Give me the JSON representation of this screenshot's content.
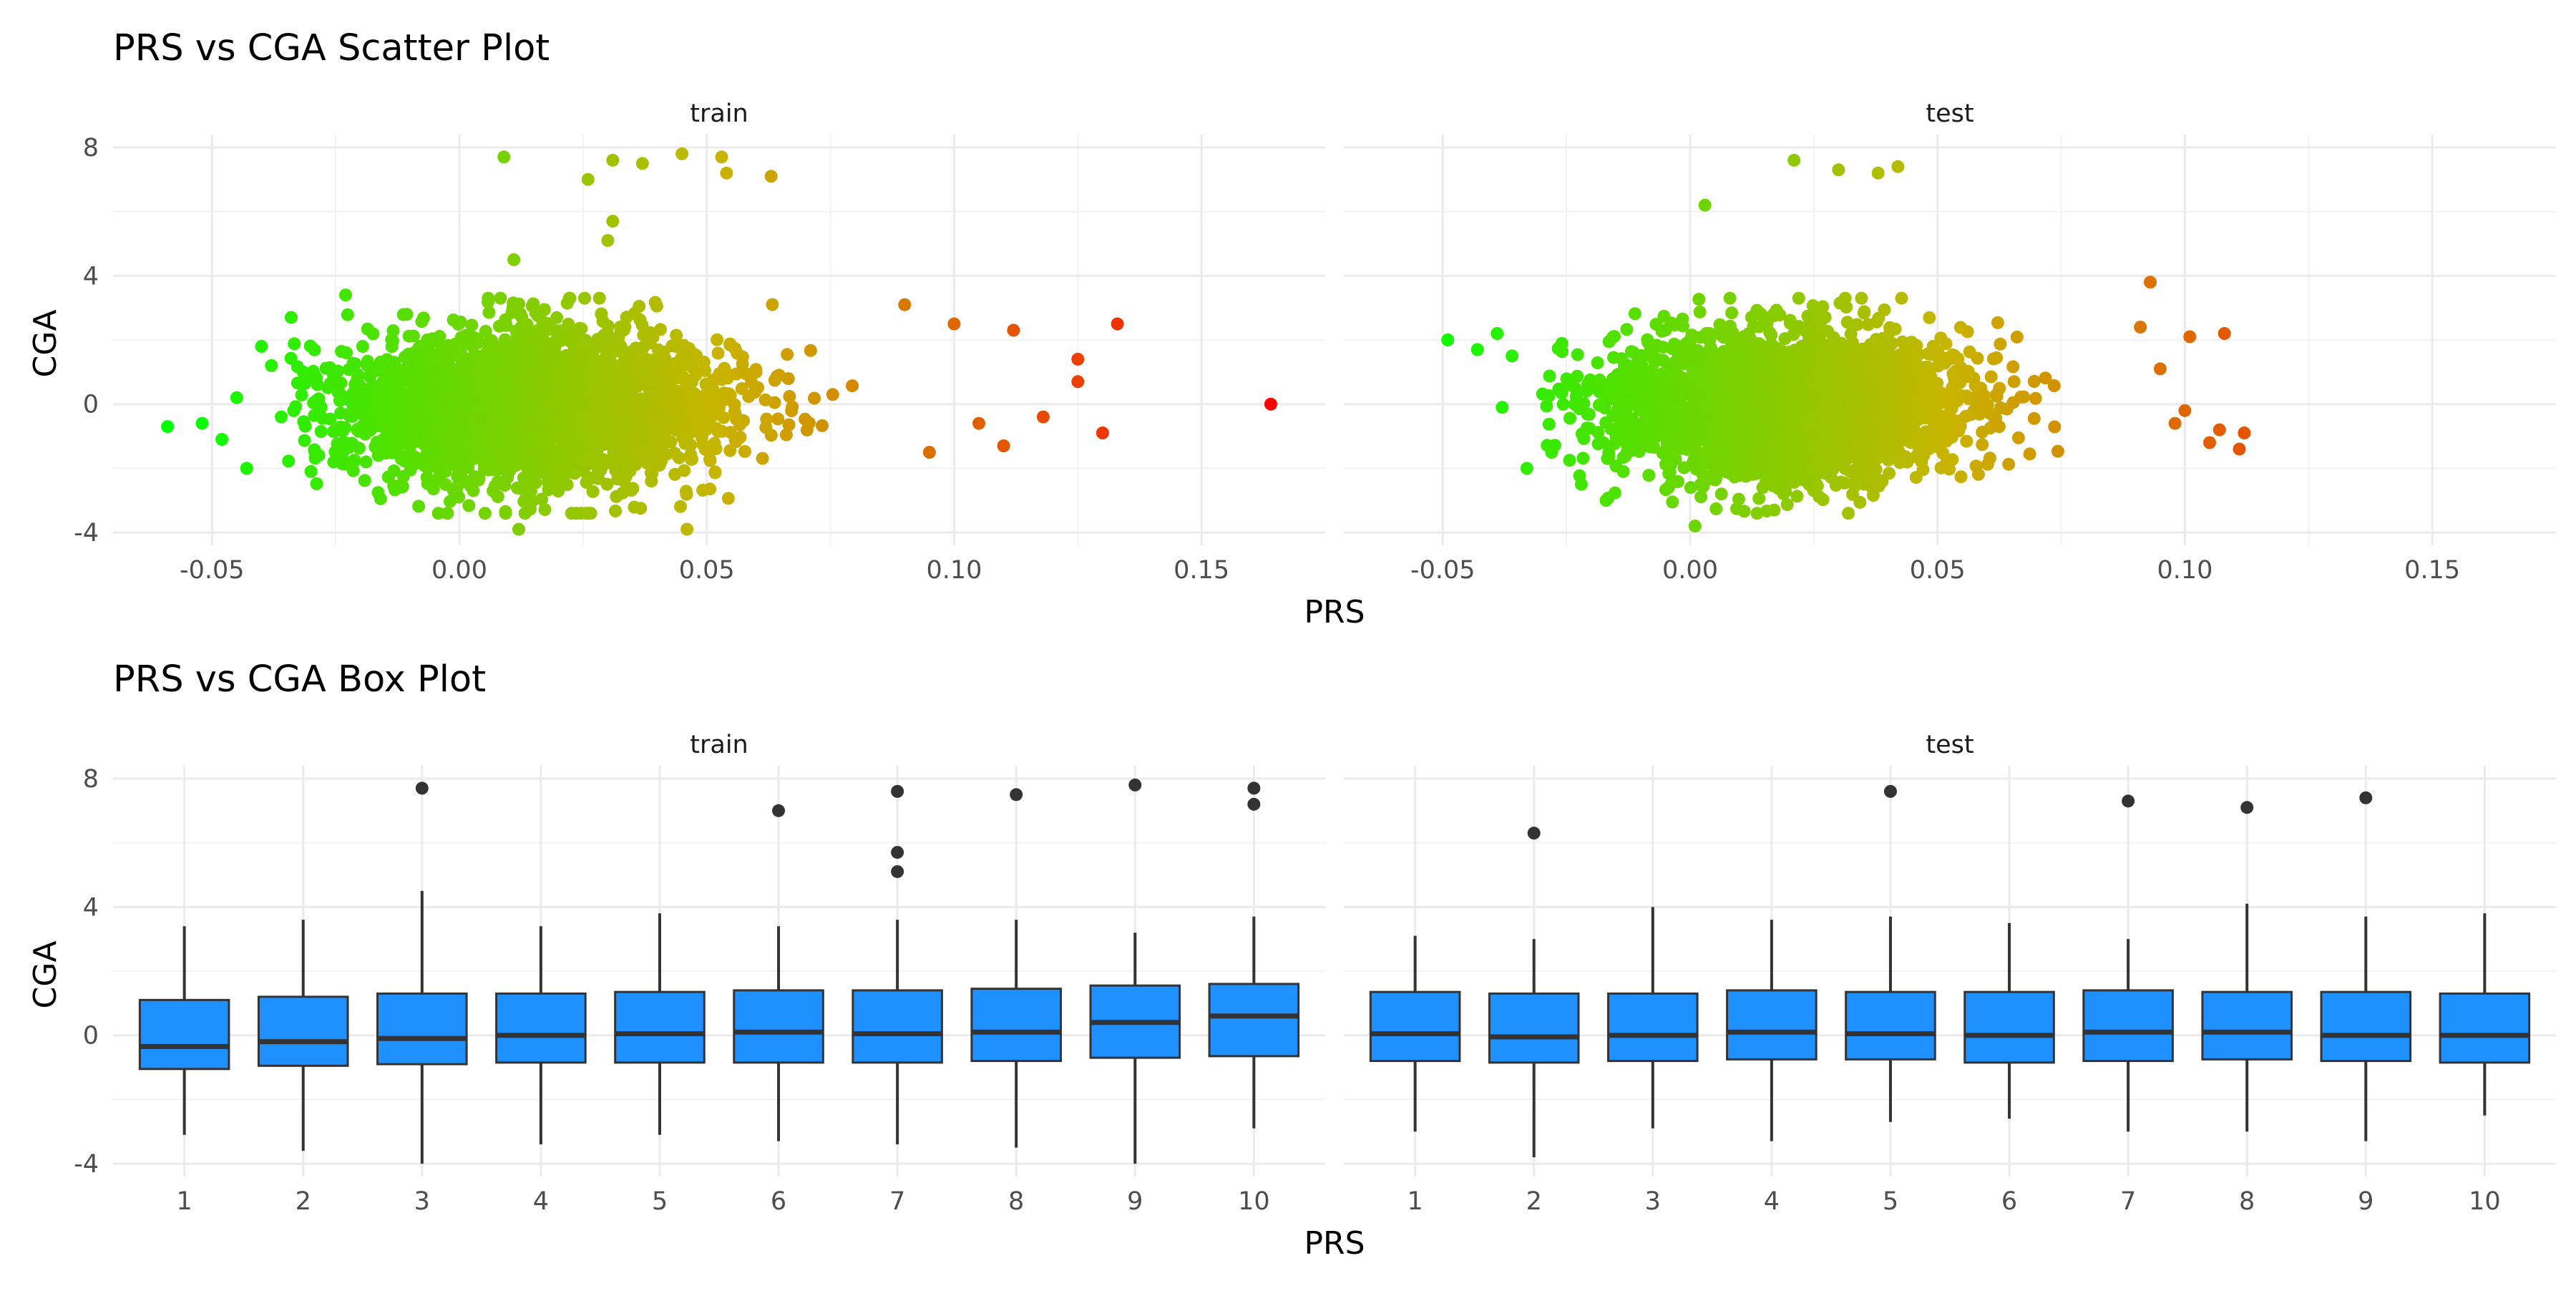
{
  "colors": {
    "gradient_low": "#00ff00",
    "gradient_mid": "#c8b400",
    "gradient_high": "#ff0000",
    "box_fill": "#1e90ff",
    "box_stroke": "#333333",
    "outlier": "#333333"
  },
  "chart_data": [
    {
      "type": "scatter",
      "title": "PRS vs CGA Scatter Plot",
      "xlabel": "PRS",
      "ylabel": "CGA",
      "facets": [
        "train",
        "test"
      ],
      "xlim": [
        -0.07,
        0.175
      ],
      "ylim": [
        -4.4,
        8.4
      ],
      "x_ticks": [
        -0.05,
        0.0,
        0.05,
        0.1,
        0.15
      ],
      "x_tick_labels": [
        "-0.05",
        "0.00",
        "0.05",
        "0.10",
        "0.15"
      ],
      "y_ticks": [
        -4,
        0,
        4,
        8
      ],
      "y_tick_labels": [
        "-4",
        "0",
        "4",
        "8"
      ],
      "color_by": "PRS",
      "grid": true,
      "series": [
        {
          "facet": "train",
          "bulk": {
            "x_range": [
              -0.035,
              0.08
            ],
            "center": [
              0.015,
              -0.1
            ],
            "sd": [
              0.02,
              1.25
            ]
          },
          "notable_points": [
            [
              -0.059,
              -0.7
            ],
            [
              -0.052,
              -0.6
            ],
            [
              -0.048,
              -1.1
            ],
            [
              -0.045,
              0.2
            ],
            [
              -0.043,
              -2.0
            ],
            [
              -0.04,
              1.8
            ],
            [
              -0.038,
              1.2
            ],
            [
              -0.036,
              -0.4
            ],
            [
              -0.034,
              2.7
            ],
            [
              -0.03,
              -2.1
            ],
            [
              -0.023,
              3.4
            ],
            [
              0.009,
              7.7
            ],
            [
              0.011,
              4.5
            ],
            [
              0.012,
              -3.9
            ],
            [
              0.026,
              7.0
            ],
            [
              0.03,
              5.1
            ],
            [
              0.031,
              7.6
            ],
            [
              0.031,
              5.7
            ],
            [
              0.037,
              7.5
            ],
            [
              0.045,
              7.8
            ],
            [
              0.046,
              -3.9
            ],
            [
              0.053,
              7.7
            ],
            [
              0.054,
              7.2
            ],
            [
              0.063,
              7.1
            ],
            [
              0.09,
              3.1
            ],
            [
              0.095,
              -1.5
            ],
            [
              0.1,
              2.5
            ],
            [
              0.105,
              -0.6
            ],
            [
              0.11,
              -1.3
            ],
            [
              0.112,
              2.3
            ],
            [
              0.118,
              -0.4
            ],
            [
              0.125,
              1.4
            ],
            [
              0.125,
              0.7
            ],
            [
              0.13,
              -0.9
            ],
            [
              0.133,
              2.5
            ],
            [
              0.164,
              0.0
            ]
          ]
        },
        {
          "facet": "test",
          "bulk": {
            "x_range": [
              -0.03,
              0.075
            ],
            "center": [
              0.02,
              0.0
            ],
            "sd": [
              0.018,
              1.2
            ]
          },
          "notable_points": [
            [
              -0.049,
              2.0
            ],
            [
              -0.043,
              1.7
            ],
            [
              -0.039,
              2.2
            ],
            [
              -0.038,
              -0.1
            ],
            [
              -0.036,
              1.5
            ],
            [
              -0.033,
              -2.0
            ],
            [
              -0.028,
              -1.5
            ],
            [
              -0.022,
              -2.5
            ],
            [
              -0.017,
              -3.0
            ],
            [
              0.001,
              -3.8
            ],
            [
              0.003,
              6.2
            ],
            [
              0.017,
              -3.3
            ],
            [
              0.021,
              7.6
            ],
            [
              0.03,
              7.3
            ],
            [
              0.038,
              7.2
            ],
            [
              0.042,
              7.4
            ],
            [
              0.093,
              3.8
            ],
            [
              0.091,
              2.4
            ],
            [
              0.095,
              1.1
            ],
            [
              0.098,
              -0.6
            ],
            [
              0.1,
              -0.2
            ],
            [
              0.101,
              2.1
            ],
            [
              0.105,
              -1.2
            ],
            [
              0.107,
              -0.8
            ],
            [
              0.108,
              2.2
            ],
            [
              0.111,
              -1.4
            ],
            [
              0.112,
              -0.9
            ]
          ]
        }
      ]
    },
    {
      "type": "box",
      "title": "PRS vs CGA Box Plot",
      "xlabel": "PRS",
      "ylabel": "CGA",
      "facets": [
        "train",
        "test"
      ],
      "categories": [
        "1",
        "2",
        "3",
        "4",
        "5",
        "6",
        "7",
        "8",
        "9",
        "10"
      ],
      "ylim": [
        -4.4,
        8.4
      ],
      "y_ticks": [
        -4,
        0,
        4,
        8
      ],
      "y_tick_labels": [
        "-4",
        "0",
        "4",
        "8"
      ],
      "grid": true,
      "series": [
        {
          "facet": "train",
          "boxes": [
            {
              "category": "1",
              "whisker_low": -3.1,
              "q1": -1.05,
              "median": -0.35,
              "q3": 1.1,
              "whisker_high": 3.4,
              "outliers": []
            },
            {
              "category": "2",
              "whisker_low": -3.6,
              "q1": -0.95,
              "median": -0.2,
              "q3": 1.2,
              "whisker_high": 3.6,
              "outliers": []
            },
            {
              "category": "3",
              "whisker_low": -4.0,
              "q1": -0.9,
              "median": -0.1,
              "q3": 1.3,
              "whisker_high": 4.5,
              "outliers": [
                7.7
              ]
            },
            {
              "category": "4",
              "whisker_low": -3.4,
              "q1": -0.85,
              "median": 0.0,
              "q3": 1.3,
              "whisker_high": 3.4,
              "outliers": []
            },
            {
              "category": "5",
              "whisker_low": -3.1,
              "q1": -0.85,
              "median": 0.05,
              "q3": 1.35,
              "whisker_high": 3.8,
              "outliers": []
            },
            {
              "category": "6",
              "whisker_low": -3.3,
              "q1": -0.85,
              "median": 0.1,
              "q3": 1.4,
              "whisker_high": 3.4,
              "outliers": [
                7.0
              ]
            },
            {
              "category": "7",
              "whisker_low": -3.4,
              "q1": -0.85,
              "median": 0.05,
              "q3": 1.4,
              "whisker_high": 3.6,
              "outliers": [
                5.1,
                5.7,
                7.6
              ]
            },
            {
              "category": "8",
              "whisker_low": -3.5,
              "q1": -0.8,
              "median": 0.1,
              "q3": 1.45,
              "whisker_high": 3.6,
              "outliers": [
                7.5
              ]
            },
            {
              "category": "9",
              "whisker_low": -4.0,
              "q1": -0.7,
              "median": 0.4,
              "q3": 1.55,
              "whisker_high": 3.2,
              "outliers": [
                7.8
              ]
            },
            {
              "category": "10",
              "whisker_low": -2.9,
              "q1": -0.65,
              "median": 0.6,
              "q3": 1.6,
              "whisker_high": 3.7,
              "outliers": [
                7.2,
                7.7
              ]
            }
          ]
        },
        {
          "facet": "test",
          "boxes": [
            {
              "category": "1",
              "whisker_low": -3.0,
              "q1": -0.8,
              "median": 0.05,
              "q3": 1.35,
              "whisker_high": 3.1,
              "outliers": []
            },
            {
              "category": "2",
              "whisker_low": -3.8,
              "q1": -0.85,
              "median": -0.05,
              "q3": 1.3,
              "whisker_high": 3.0,
              "outliers": [
                6.3
              ]
            },
            {
              "category": "3",
              "whisker_low": -2.9,
              "q1": -0.8,
              "median": 0.0,
              "q3": 1.3,
              "whisker_high": 4.0,
              "outliers": []
            },
            {
              "category": "4",
              "whisker_low": -3.3,
              "q1": -0.75,
              "median": 0.1,
              "q3": 1.4,
              "whisker_high": 3.6,
              "outliers": []
            },
            {
              "category": "5",
              "whisker_low": -2.7,
              "q1": -0.75,
              "median": 0.05,
              "q3": 1.35,
              "whisker_high": 3.7,
              "outliers": [
                7.6
              ]
            },
            {
              "category": "6",
              "whisker_low": -2.6,
              "q1": -0.85,
              "median": 0.0,
              "q3": 1.35,
              "whisker_high": 3.5,
              "outliers": []
            },
            {
              "category": "7",
              "whisker_low": -3.0,
              "q1": -0.8,
              "median": 0.1,
              "q3": 1.4,
              "whisker_high": 3.0,
              "outliers": [
                7.3
              ]
            },
            {
              "category": "8",
              "whisker_low": -3.0,
              "q1": -0.75,
              "median": 0.1,
              "q3": 1.35,
              "whisker_high": 4.1,
              "outliers": [
                7.1
              ]
            },
            {
              "category": "9",
              "whisker_low": -3.3,
              "q1": -0.8,
              "median": 0.0,
              "q3": 1.35,
              "whisker_high": 3.7,
              "outliers": [
                7.4
              ]
            },
            {
              "category": "10",
              "whisker_low": -2.5,
              "q1": -0.85,
              "median": 0.0,
              "q3": 1.3,
              "whisker_high": 3.8,
              "outliers": []
            }
          ]
        }
      ]
    }
  ]
}
